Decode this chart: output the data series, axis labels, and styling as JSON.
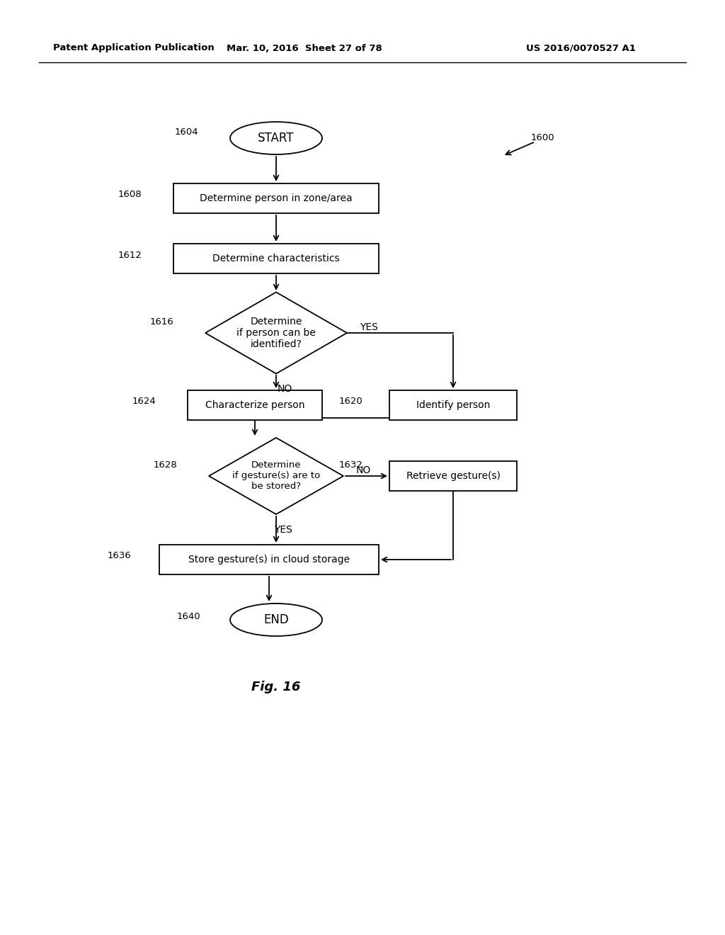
{
  "bg_color": "#ffffff",
  "header_left": "Patent Application Publication",
  "header_mid": "Mar. 10, 2016  Sheet 27 of 78",
  "header_right": "US 2016/0070527 A1",
  "figure_label": "Fig. 16"
}
